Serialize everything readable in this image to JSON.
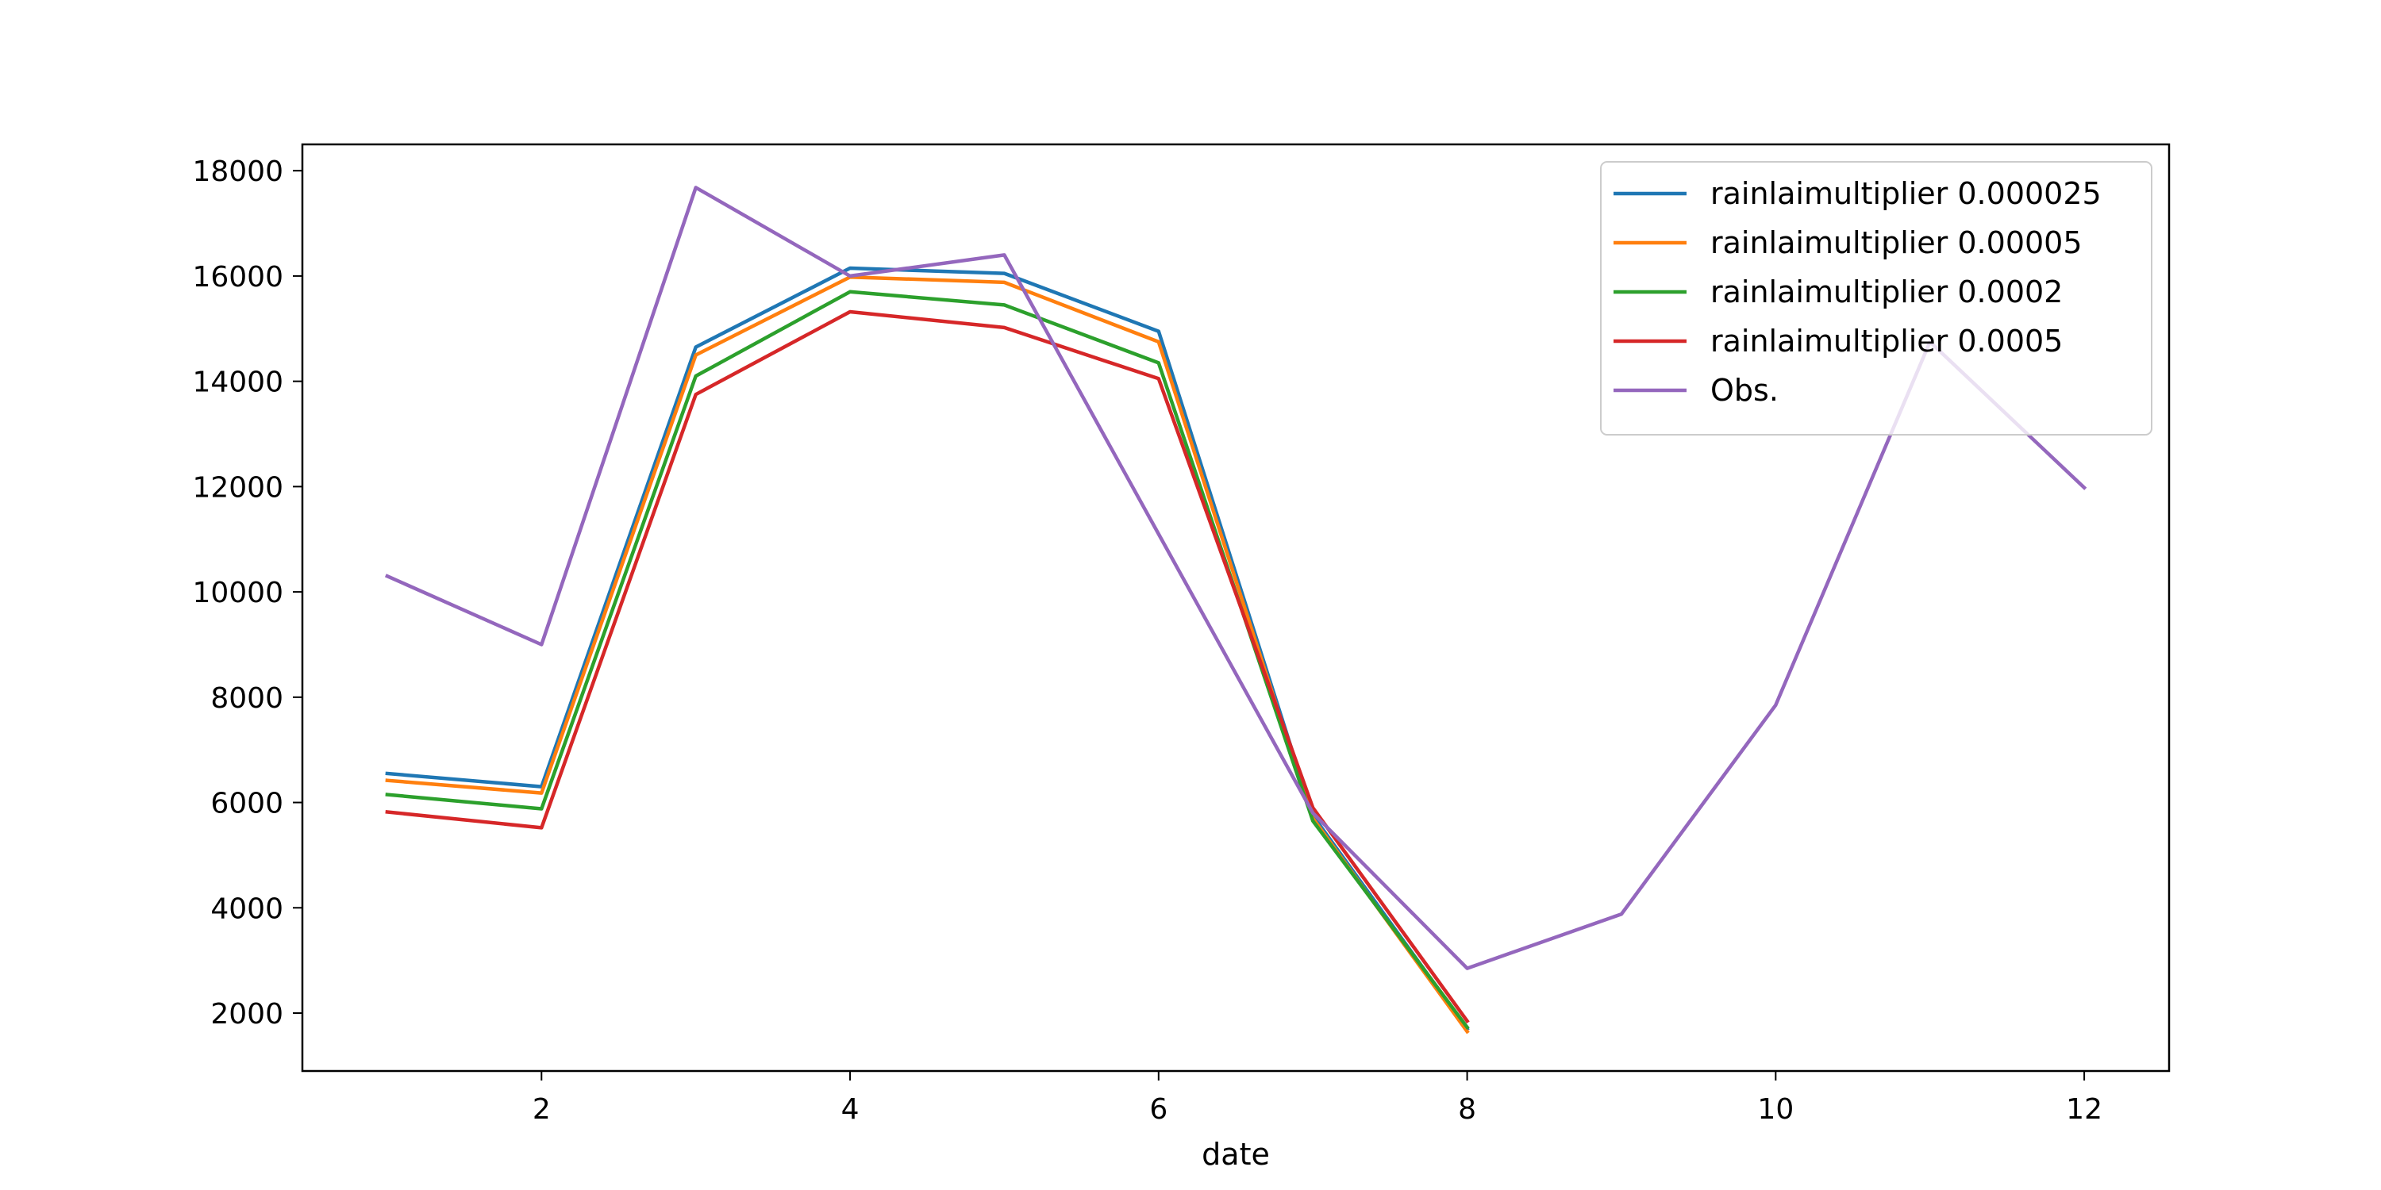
{
  "chart_data": {
    "type": "line",
    "title": "",
    "xlabel": "date",
    "ylabel": "",
    "xlim": [
      0.45,
      12.55
    ],
    "ylim": [
      900,
      18500
    ],
    "xticks": [
      2,
      4,
      6,
      8,
      10,
      12
    ],
    "yticks": [
      2000,
      4000,
      6000,
      8000,
      10000,
      12000,
      14000,
      16000,
      18000
    ],
    "grid": false,
    "legend_position": "top-right",
    "series": [
      {
        "name": "rainlaimultiplier 0.000025",
        "color": "#1f77b4",
        "x": [
          1,
          2,
          3,
          4,
          5,
          6,
          7,
          8
        ],
        "y": [
          6550,
          6300,
          14650,
          16150,
          16050,
          14950,
          5750,
          1700
        ]
      },
      {
        "name": "rainlaimultiplier 0.00005",
        "color": "#ff7f0e",
        "x": [
          1,
          2,
          3,
          4,
          5,
          6,
          7,
          8
        ],
        "y": [
          6420,
          6180,
          14500,
          15980,
          15880,
          14750,
          5700,
          1650
        ]
      },
      {
        "name": "rainlaimultiplier 0.0002",
        "color": "#2ca02c",
        "x": [
          1,
          2,
          3,
          4,
          5,
          6,
          7,
          8
        ],
        "y": [
          6150,
          5880,
          14100,
          15700,
          15450,
          14350,
          5650,
          1730
        ]
      },
      {
        "name": "rainlaimultiplier 0.0005",
        "color": "#d62728",
        "x": [
          1,
          2,
          3,
          4,
          5,
          6,
          7,
          8
        ],
        "y": [
          5820,
          5520,
          13750,
          15320,
          15020,
          14050,
          5900,
          1850
        ]
      },
      {
        "name": "Obs.",
        "color": "#9467bd",
        "x": [
          1,
          2,
          3,
          4,
          5,
          6,
          7,
          8,
          9,
          10,
          11,
          12
        ],
        "y": [
          10300,
          9000,
          17680,
          16000,
          16400,
          11100,
          5800,
          2850,
          3880,
          7850,
          14750,
          11980
        ]
      }
    ]
  }
}
